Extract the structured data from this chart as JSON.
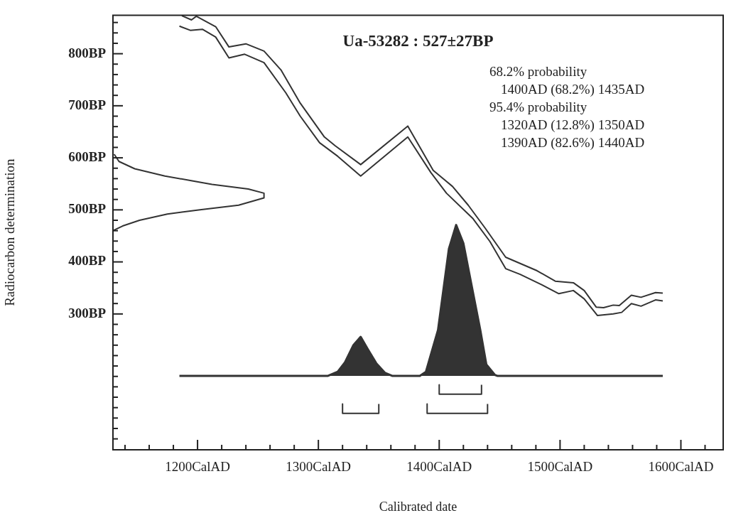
{
  "chart_data": {
    "type": "line",
    "title": "Ua-53282 : 527±27BP",
    "xlabel": "Calibrated date",
    "ylabel": "Radiocarbon determination",
    "annotations": [
      "68.2% probability",
      "  1400AD (68.2%) 1435AD",
      "95.4% probability",
      "  1320AD (12.8%) 1350AD",
      "  1390AD (82.6%) 1440AD"
    ],
    "xlim": [
      1130,
      1635
    ],
    "xticks": [
      {
        "value": 1140,
        "label": null
      },
      {
        "value": 1160,
        "label": null
      },
      {
        "value": 1180,
        "label": null
      },
      {
        "value": 1200,
        "label": "1200CalAD"
      },
      {
        "value": 1220,
        "label": null
      },
      {
        "value": 1240,
        "label": null
      },
      {
        "value": 1260,
        "label": null
      },
      {
        "value": 1280,
        "label": null
      },
      {
        "value": 1300,
        "label": "1300CalAD"
      },
      {
        "value": 1320,
        "label": null
      },
      {
        "value": 1340,
        "label": null
      },
      {
        "value": 1360,
        "label": null
      },
      {
        "value": 1380,
        "label": null
      },
      {
        "value": 1400,
        "label": "1400CalAD"
      },
      {
        "value": 1420,
        "label": null
      },
      {
        "value": 1440,
        "label": null
      },
      {
        "value": 1460,
        "label": null
      },
      {
        "value": 1480,
        "label": null
      },
      {
        "value": 1500,
        "label": "1500CalAD"
      },
      {
        "value": 1520,
        "label": null
      },
      {
        "value": 1540,
        "label": null
      },
      {
        "value": 1560,
        "label": null
      },
      {
        "value": 1580,
        "label": null
      },
      {
        "value": 1600,
        "label": "1600CalAD"
      },
      {
        "value": 1620,
        "label": null
      }
    ],
    "ylim": [
      39,
      874
    ],
    "yticks": [
      {
        "value": 60,
        "label": null
      },
      {
        "value": 80,
        "label": null
      },
      {
        "value": 100,
        "label": null
      },
      {
        "value": 120,
        "label": null
      },
      {
        "value": 140,
        "label": null
      },
      {
        "value": 160,
        "label": null
      },
      {
        "value": 180,
        "label": null
      },
      {
        "value": 200,
        "label": null
      },
      {
        "value": 220,
        "label": null
      },
      {
        "value": 240,
        "label": null
      },
      {
        "value": 260,
        "label": null
      },
      {
        "value": 280,
        "label": null
      },
      {
        "value": 300,
        "label": "300BP"
      },
      {
        "value": 320,
        "label": null
      },
      {
        "value": 340,
        "label": null
      },
      {
        "value": 360,
        "label": null
      },
      {
        "value": 380,
        "label": null
      },
      {
        "value": 400,
        "label": "400BP"
      },
      {
        "value": 420,
        "label": null
      },
      {
        "value": 440,
        "label": null
      },
      {
        "value": 460,
        "label": null
      },
      {
        "value": 480,
        "label": null
      },
      {
        "value": 500,
        "label": "500BP"
      },
      {
        "value": 520,
        "label": null
      },
      {
        "value": 540,
        "label": null
      },
      {
        "value": 560,
        "label": null
      },
      {
        "value": 580,
        "label": null
      },
      {
        "value": 600,
        "label": "600BP"
      },
      {
        "value": 620,
        "label": null
      },
      {
        "value": 640,
        "label": null
      },
      {
        "value": 660,
        "label": null
      },
      {
        "value": 680,
        "label": null
      },
      {
        "value": 700,
        "label": "700BP"
      },
      {
        "value": 720,
        "label": null
      },
      {
        "value": 740,
        "label": null
      },
      {
        "value": 760,
        "label": null
      },
      {
        "value": 780,
        "label": null
      },
      {
        "value": 800,
        "label": "800BP"
      },
      {
        "value": 820,
        "label": null
      },
      {
        "value": 840,
        "label": null
      },
      {
        "value": 860,
        "label": null
      }
    ],
    "marker": "none",
    "series": [
      {
        "type": "line",
        "color": "#333333",
        "x": [
          1187,
          1195,
          1199,
          1215,
          1226,
          1240,
          1255,
          1269,
          1285,
          1305,
          1314,
          1335,
          1374,
          1395,
          1411,
          1424,
          1438,
          1455,
          1481,
          1496,
          1511,
          1520,
          1530,
          1536,
          1544,
          1549,
          1559,
          1567,
          1579,
          1585
        ],
        "values": [
          873,
          865,
          872,
          852,
          813,
          819,
          805,
          769,
          705,
          640,
          623,
          587,
          661,
          576,
          545,
          509,
          465,
          409,
          383,
          363,
          360,
          345,
          313,
          312,
          317,
          316,
          336,
          332,
          341,
          340
        ]
      },
      {
        "type": "line",
        "color": "#333333",
        "x": [
          1185,
          1194,
          1204,
          1215,
          1226,
          1239,
          1255,
          1273,
          1285,
          1301,
          1316,
          1335,
          1374,
          1393,
          1406,
          1424,
          1428,
          1442,
          1455,
          1467,
          1485,
          1499,
          1511,
          1520,
          1531,
          1544,
          1551,
          1559,
          1567,
          1579,
          1585
        ],
        "values": [
          853,
          845,
          847,
          832,
          792,
          799,
          783,
          725,
          680,
          629,
          603,
          565,
          640,
          572,
          532,
          492,
          483,
          439,
          387,
          376,
          356,
          339,
          345,
          329,
          297,
          300,
          303,
          320,
          315,
          327,
          325
        ]
      },
      {
        "type": "line",
        "color": "#333333",
        "x": [
          1131,
          1135,
          1148,
          1173,
          1212,
          1242,
          1255,
          1255,
          1234,
          1202,
          1175,
          1152,
          1138,
          1130,
          1130
        ],
        "values": [
          607,
          593,
          579,
          565,
          549,
          540,
          532,
          523,
          509,
          500,
          492,
          480,
          469,
          460,
          443
        ]
      },
      {
        "type": "area",
        "color": "#333333",
        "x": [
          1185,
          1308,
          1316,
          1322,
          1329,
          1335,
          1341,
          1348,
          1355,
          1361,
          1384,
          1389,
          1399,
          1408,
          1414,
          1420,
          1434,
          1439,
          1446,
          1448,
          1585
        ],
        "values": [
          181,
          181,
          189,
          207,
          240,
          256,
          232,
          205,
          187,
          181,
          181,
          189,
          269,
          425,
          471,
          436,
          269,
          203,
          183,
          181,
          181
        ]
      },
      {
        "type": "line",
        "color": "#333333",
        "x": [
          1400,
          1400,
          1435,
          1435
        ],
        "values": [
          164,
          146,
          146,
          164
        ]
      },
      {
        "type": "line",
        "color": "#333333",
        "x": [
          1320,
          1320,
          1350,
          1350
        ],
        "values": [
          127,
          109,
          109,
          127
        ]
      },
      {
        "type": "line",
        "color": "#333333",
        "x": [
          1390,
          1390,
          1440,
          1440
        ],
        "values": [
          127,
          109,
          109,
          127
        ]
      }
    ]
  }
}
